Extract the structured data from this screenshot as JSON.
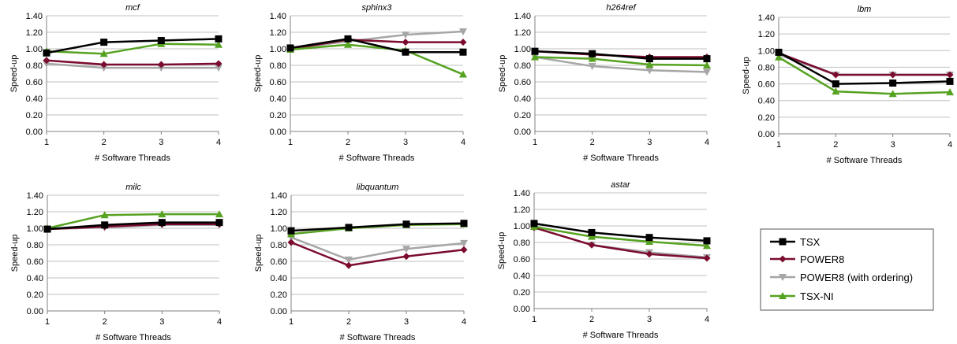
{
  "legend": {
    "entries": [
      "TSX",
      "POWER8",
      "POWER8 (with ordering)",
      "TSX-NI"
    ]
  },
  "series_style": [
    {
      "name": "TSX",
      "color": "#000000",
      "marker": "square"
    },
    {
      "name": "POWER8",
      "color": "#7b0c2e",
      "marker": "diamond"
    },
    {
      "name": "POWER8 (with ordering)",
      "color": "#a6a6a6",
      "marker": "triangle-down"
    },
    {
      "name": "TSX-NI",
      "color": "#56a221",
      "marker": "triangle-up"
    }
  ],
  "chart_data": [
    {
      "type": "line",
      "title": "mcf",
      "xlabel": "# Software Threads",
      "ylabel": "Speed-up",
      "x": [
        1,
        2,
        3,
        4
      ],
      "ylim": [
        0,
        1.4
      ],
      "yticks": [
        "0.00",
        "0.20",
        "0.40",
        "0.60",
        "0.80",
        "1.00",
        "1.20",
        "1.40"
      ],
      "grid": true,
      "series": [
        {
          "name": "TSX",
          "values": [
            0.95,
            1.08,
            1.1,
            1.12
          ]
        },
        {
          "name": "POWER8",
          "values": [
            0.86,
            0.81,
            0.81,
            0.82
          ]
        },
        {
          "name": "POWER8 (with ordering)",
          "values": [
            0.82,
            0.77,
            0.77,
            0.77
          ]
        },
        {
          "name": "TSX-NI",
          "values": [
            0.97,
            0.94,
            1.06,
            1.05
          ]
        }
      ]
    },
    {
      "type": "line",
      "title": "sphinx3",
      "xlabel": "# Software Threads",
      "ylabel": "Speed-up",
      "x": [
        1,
        2,
        3,
        4
      ],
      "ylim": [
        0,
        1.4
      ],
      "yticks": [
        "0.00",
        "0.20",
        "0.40",
        "0.60",
        "0.80",
        "1.00",
        "1.20",
        "1.40"
      ],
      "grid": true,
      "series": [
        {
          "name": "TSX",
          "values": [
            1.01,
            1.12,
            0.96,
            0.96
          ]
        },
        {
          "name": "POWER8",
          "values": [
            1.0,
            1.11,
            1.08,
            1.08
          ]
        },
        {
          "name": "POWER8 (with ordering)",
          "values": [
            1.0,
            1.09,
            1.17,
            1.21
          ]
        },
        {
          "name": "TSX-NI",
          "values": [
            0.99,
            1.05,
            0.98,
            0.69
          ]
        }
      ]
    },
    {
      "type": "line",
      "title": "h264ref",
      "xlabel": "# Software Threads",
      "ylabel": "Speed-up",
      "x": [
        1,
        2,
        3,
        4
      ],
      "ylim": [
        0,
        1.4
      ],
      "yticks": [
        "0.00",
        "0.20",
        "0.40",
        "0.60",
        "0.80",
        "1.00",
        "1.20",
        "1.40"
      ],
      "grid": true,
      "series": [
        {
          "name": "TSX",
          "values": [
            0.97,
            0.94,
            0.88,
            0.88
          ]
        },
        {
          "name": "POWER8",
          "values": [
            0.97,
            0.93,
            0.9,
            0.9
          ]
        },
        {
          "name": "POWER8 (with ordering)",
          "values": [
            0.9,
            0.79,
            0.74,
            0.72
          ]
        },
        {
          "name": "TSX-NI",
          "values": [
            0.9,
            0.88,
            0.81,
            0.8
          ]
        }
      ]
    },
    {
      "type": "line",
      "title": "lbm",
      "xlabel": "# Software Threads",
      "ylabel": "Speed-up",
      "x": [
        1,
        2,
        3,
        4
      ],
      "ylim": [
        0,
        1.4
      ],
      "yticks": [
        "0.00",
        "0.20",
        "0.40",
        "0.60",
        "0.80",
        "1.00",
        "1.20",
        "1.40"
      ],
      "grid": true,
      "series": [
        {
          "name": "TSX",
          "values": [
            0.98,
            0.6,
            0.61,
            0.63
          ]
        },
        {
          "name": "POWER8",
          "values": [
            0.97,
            0.71,
            0.71,
            0.71
          ]
        },
        {
          "name": "POWER8 (with ordering)",
          "values": [
            0.95,
            0.71,
            0.71,
            0.71
          ]
        },
        {
          "name": "TSX-NI",
          "values": [
            0.92,
            0.51,
            0.48,
            0.5
          ]
        }
      ]
    },
    {
      "type": "line",
      "title": "milc",
      "xlabel": "# Software Threads",
      "ylabel": "Speed-up",
      "x": [
        1,
        2,
        3,
        4
      ],
      "ylim": [
        0,
        1.4
      ],
      "yticks": [
        "0.00",
        "0.20",
        "0.40",
        "0.60",
        "0.80",
        "1.00",
        "1.20",
        "1.40"
      ],
      "grid": true,
      "series": [
        {
          "name": "TSX",
          "values": [
            0.99,
            1.04,
            1.07,
            1.07
          ]
        },
        {
          "name": "POWER8",
          "values": [
            0.99,
            1.02,
            1.05,
            1.05
          ]
        },
        {
          "name": "POWER8 (with ordering)",
          "values": [
            0.99,
            1.01,
            1.04,
            1.04
          ]
        },
        {
          "name": "TSX-NI",
          "values": [
            1.0,
            1.16,
            1.17,
            1.17
          ]
        }
      ]
    },
    {
      "type": "line",
      "title": "libquantum",
      "xlabel": "# Software Threads",
      "ylabel": "Speed-up",
      "x": [
        1,
        2,
        3,
        4
      ],
      "ylim": [
        0,
        1.4
      ],
      "yticks": [
        "0.00",
        "0.20",
        "0.40",
        "0.60",
        "0.80",
        "1.00",
        "1.20",
        "1.40"
      ],
      "grid": true,
      "series": [
        {
          "name": "TSX",
          "values": [
            0.97,
            1.01,
            1.05,
            1.06
          ]
        },
        {
          "name": "POWER8",
          "values": [
            0.83,
            0.55,
            0.66,
            0.74
          ]
        },
        {
          "name": "POWER8 (with ordering)",
          "values": [
            0.89,
            0.62,
            0.75,
            0.82
          ]
        },
        {
          "name": "TSX-NI",
          "values": [
            0.93,
            1.0,
            1.04,
            1.05
          ]
        }
      ]
    },
    {
      "type": "line",
      "title": "astar",
      "xlabel": "# Software Threads",
      "ylabel": "Speed-up",
      "x": [
        1,
        2,
        3,
        4
      ],
      "ylim": [
        0,
        1.4
      ],
      "yticks": [
        "0.00",
        "0.20",
        "0.40",
        "0.60",
        "0.80",
        "1.00",
        "1.20",
        "1.40"
      ],
      "grid": true,
      "series": [
        {
          "name": "TSX",
          "values": [
            1.03,
            0.92,
            0.86,
            0.82
          ]
        },
        {
          "name": "POWER8",
          "values": [
            0.98,
            0.77,
            0.66,
            0.61
          ]
        },
        {
          "name": "POWER8 (with ordering)",
          "values": [
            0.98,
            0.77,
            0.68,
            0.62
          ]
        },
        {
          "name": "TSX-NI",
          "values": [
            0.99,
            0.87,
            0.81,
            0.76
          ]
        }
      ]
    }
  ]
}
